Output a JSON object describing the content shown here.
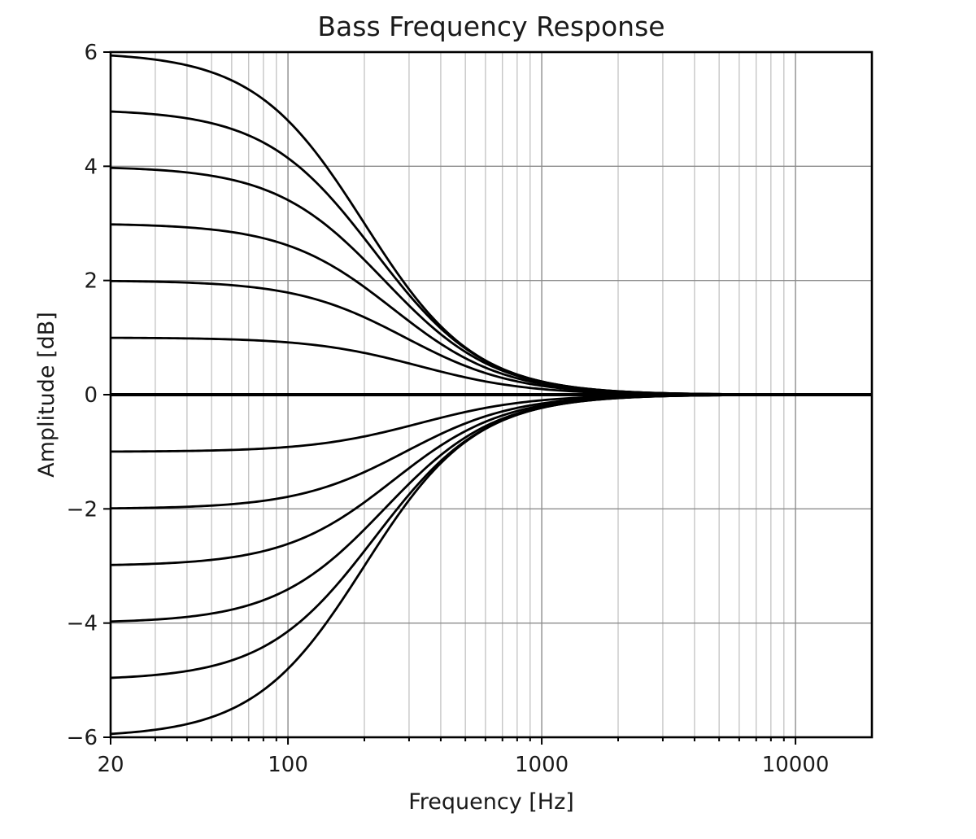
{
  "chart_data": {
    "type": "line",
    "title": "Bass Frequency Response",
    "xlabel": "Frequency [Hz]",
    "ylabel": "Amplitude [dB]",
    "xscale": "log",
    "xlim": [
      20,
      20000
    ],
    "ylim": [
      -6,
      6
    ],
    "xticks": [
      20,
      100,
      1000,
      10000
    ],
    "xtick_labels": [
      "20",
      "100",
      "1000",
      "10000"
    ],
    "yticks": [
      -6,
      -4,
      -2,
      0,
      2,
      4,
      6
    ],
    "ytick_labels": [
      "−6",
      "−4",
      "−2",
      "0",
      "2",
      "4",
      "6"
    ],
    "grid": true,
    "legend": "none",
    "series": [
      {
        "gain_db": 6,
        "corner_hz": 200
      },
      {
        "gain_db": 5,
        "corner_hz": 220
      },
      {
        "gain_db": 4,
        "corner_hz": 240
      },
      {
        "gain_db": 3,
        "corner_hz": 260
      },
      {
        "gain_db": 2,
        "corner_hz": 290
      },
      {
        "gain_db": 1,
        "corner_hz": 330
      },
      {
        "gain_db": 0,
        "corner_hz": 330
      },
      {
        "gain_db": -1,
        "corner_hz": 330
      },
      {
        "gain_db": -2,
        "corner_hz": 290
      },
      {
        "gain_db": -3,
        "corner_hz": 260
      },
      {
        "gain_db": -4,
        "corner_hz": 240
      },
      {
        "gain_db": -5,
        "corner_hz": 220
      },
      {
        "gain_db": -6,
        "corner_hz": 200
      }
    ]
  }
}
